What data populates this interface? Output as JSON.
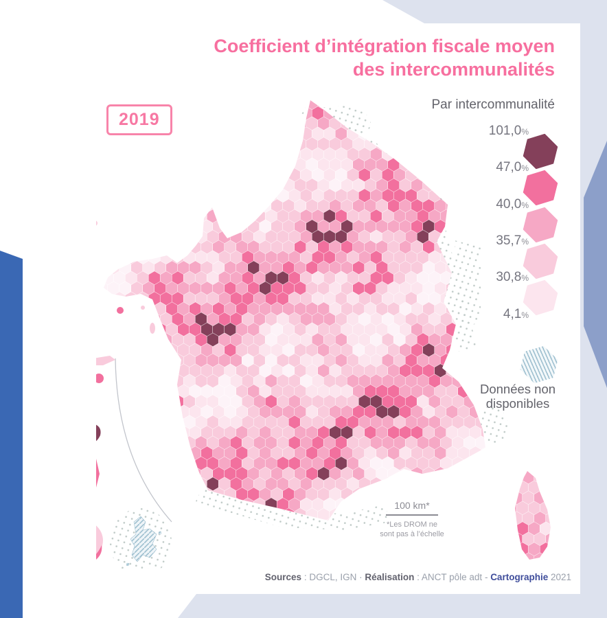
{
  "colors": {
    "accent_pink": "#f76f9f",
    "badge_pink": "#f778a3",
    "frame_blue": "#3a68b4",
    "soft_blue": "#8c9fc9",
    "background_tint": "#dde2ee",
    "nodata_hatch": "#9fc0d0"
  },
  "badge": {
    "year": "2019"
  },
  "title": {
    "line1": "Coefficient d’intégration fiscale moyen",
    "line2": "des intercommunalités"
  },
  "subtitle": "Par intercommunalité",
  "legend": {
    "unit": "%",
    "entries": [
      {
        "label": "101,0"
      },
      {
        "label": "47,0"
      },
      {
        "label": "40,0"
      },
      {
        "label": "35,7"
      },
      {
        "label": "30,8"
      },
      {
        "label": "4,1"
      }
    ],
    "colors": [
      "#84405a",
      "#f2709e",
      "#f6a8c5",
      "#f9cbdc",
      "#fce5ee"
    ],
    "no_data": {
      "line1": "Données non",
      "line2": "disponibles"
    }
  },
  "chart_data": {
    "type": "heatmap",
    "title": "Coefficient d’intégration fiscale moyen des intercommunalités",
    "subtitle": "Par intercommunalité",
    "year": "2019",
    "class_breaks_percent": [
      101.0,
      47.0,
      40.0,
      35.7,
      30.8,
      4.1
    ],
    "class_colors_dark_to_light": [
      "#84405a",
      "#f2709e",
      "#f6a8c5",
      "#f9cbdc",
      "#fce5ee"
    ],
    "no_data_style": "hatched"
  },
  "map": {
    "palette": [
      "#fdf3f8",
      "#fce5ee",
      "#f9cbdc",
      "#f6a8c5",
      "#f2709e",
      "#84405a"
    ]
  },
  "scale": {
    "label": "100 km*",
    "note1": "*Les DROM ne",
    "note2": "sont pas à l’échelle"
  },
  "source": {
    "s1": "Sources",
    "c1": " : ",
    "v1": "DGCL, IGN",
    "sep": " · ",
    "s2": "Réalisation",
    "c2": " : ",
    "v2": "ANCT pôle adt - ",
    "carto": "Cartographie",
    "year": " 2021"
  }
}
